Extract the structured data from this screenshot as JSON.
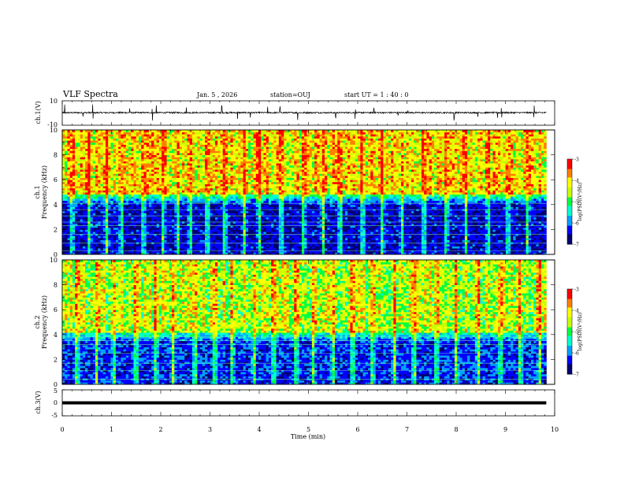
{
  "header": {
    "title": "VLF Spectra",
    "date": "Jan. 5 , 2026",
    "station": "station=OUJ",
    "start_ut": "start UT =  1 : 40 : 0"
  },
  "colors": {
    "colormap": [
      "#000070",
      "#0000ff",
      "#00a0ff",
      "#00ffd0",
      "#00ff40",
      "#c8ff00",
      "#ffff00",
      "#ff8000",
      "#ff0000",
      "#ffffff"
    ],
    "background": "#ffffff",
    "ink": "#000000"
  },
  "chart_data": [
    {
      "type": "line",
      "name": "ch1-waveform",
      "ylabel": "ch.1(V)",
      "ylim": [
        -10,
        10
      ],
      "yticks": [
        10,
        -10
      ],
      "xlim": [
        0,
        10
      ],
      "data_end_min": 9.83,
      "baseline_v": 0.3,
      "noise_amplitude_v": 1.2,
      "spike_times_min": [
        0.05,
        0.42,
        0.62,
        1.37,
        1.83,
        1.91,
        2.52,
        3.24,
        3.56,
        3.82,
        4.17,
        4.42,
        4.78,
        5.55,
        5.95,
        6.33,
        6.82,
        7.02,
        7.96,
        8.44,
        8.84,
        8.92,
        9.58
      ]
    },
    {
      "type": "heatmap",
      "name": "ch1-spectrogram",
      "ylabel": "ch.1\nFrequency (kHz)",
      "ylim": [
        0,
        10
      ],
      "yticks": [
        0,
        2,
        4,
        6,
        8,
        10
      ],
      "xlim": [
        0,
        10
      ],
      "data_end_min": 9.83,
      "zlabel": "log(PSD)(V²/Hz)",
      "zlim": [
        -7,
        -3
      ],
      "zticks": [
        -3,
        -4,
        -5,
        -6,
        -7
      ],
      "upper_band_khz": [
        4.8,
        10
      ],
      "upper_band_mean_log_psd": -4.1,
      "lower_band_mean_log_psd": -6.5,
      "narrowband_lines_khz": [
        0.3,
        0.9,
        1.6,
        2.3,
        2.6,
        3.1,
        3.6,
        4.1
      ],
      "burst_times_min": [
        0.2,
        0.55,
        0.9,
        1.2,
        1.65,
        2.05,
        2.35,
        2.6,
        2.95,
        3.3,
        3.7,
        4.0,
        4.45,
        4.9,
        5.3,
        5.65,
        6.1,
        6.5,
        6.9,
        7.35,
        7.8,
        8.2,
        8.65,
        9.05,
        9.45
      ]
    },
    {
      "type": "heatmap",
      "name": "ch2-spectrogram",
      "ylabel": "ch.2\nFrequency (kHz)",
      "ylim": [
        0,
        10
      ],
      "yticks": [
        0,
        2,
        4,
        6,
        8,
        10
      ],
      "xlim": [
        0,
        10
      ],
      "data_end_min": 9.83,
      "zlabel": "log(PSD)(V²/Hz)",
      "zlim": [
        -7,
        -3
      ],
      "zticks": [
        -3,
        -4,
        -5,
        -6,
        -7
      ],
      "upper_band_khz": [
        4.2,
        10
      ],
      "upper_band_mean_log_psd": -4.5,
      "lower_band_mean_log_psd": -6.3,
      "narrowband_lines_khz": [
        0.4,
        1.1,
        1.7,
        2.5,
        3.2,
        3.5,
        3.8
      ],
      "burst_times_min": [
        0.3,
        0.7,
        1.05,
        1.5,
        1.9,
        2.25,
        2.7,
        3.1,
        3.45,
        3.9,
        4.3,
        4.75,
        5.1,
        5.5,
        5.9,
        6.3,
        6.75,
        7.15,
        7.6,
        8.0,
        8.45,
        8.9,
        9.3,
        9.7
      ]
    },
    {
      "type": "line",
      "name": "ch3-waveform",
      "ylabel": "ch.3(V)",
      "ylim": [
        -5,
        5
      ],
      "yticks": [
        5,
        0,
        -5
      ],
      "xlim": [
        0,
        10
      ],
      "data_end_min": 9.83,
      "baseline_v": 0.0,
      "xlabel": "Time (min)",
      "xticks": [
        0,
        1,
        2,
        3,
        4,
        5,
        6,
        7,
        8,
        9,
        10
      ]
    }
  ]
}
